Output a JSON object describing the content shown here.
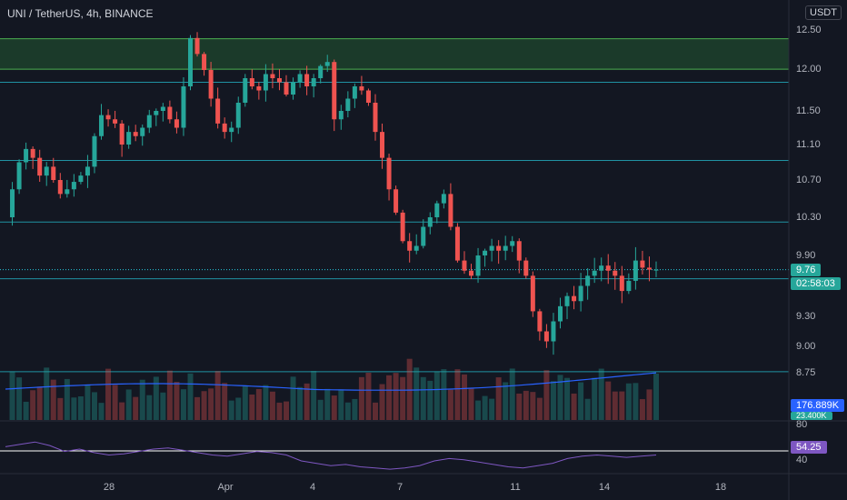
{
  "header": {
    "symbol_line": "UNI / TetherUS, 4h, BINANCE",
    "currency": "USDT"
  },
  "colors": {
    "up": "#26a69a",
    "down": "#ef5350",
    "level": "#26c6da",
    "zone": "#1b3a2a",
    "zone_line": "#4caf50",
    "vol_ma": "#2962ff",
    "rsi": "#7e57c2",
    "price_tag": "#26a69a",
    "vol_tag": "#2962ff",
    "rsi_tag": "#7e57c2"
  },
  "tags": {
    "price": "9.76",
    "countdown": "02:58:03",
    "volume_ma": "176.889K",
    "volume": "23.400K",
    "rsi": "54.25"
  },
  "chart_data": {
    "type": "candlestick",
    "title": "UNI / TetherUS, 4h, BINANCE",
    "y_ticks": [
      "12.50",
      "12.00",
      "11.50",
      "11.10",
      "10.70",
      "10.30",
      "9.90",
      "9.30",
      "9.00",
      "8.75"
    ],
    "x_ticks": [
      "28",
      "Apr",
      "4",
      "7",
      "11",
      "14",
      "18"
    ],
    "y_range": [
      8.75,
      12.5
    ],
    "horizontal_levels": [
      11.85,
      10.92,
      10.25,
      9.67,
      8.76
    ],
    "resistance_zone": [
      12.01,
      12.39
    ],
    "last_price": 9.76,
    "close_series": [
      10.3,
      10.6,
      10.9,
      11.05,
      10.95,
      10.75,
      10.85,
      10.7,
      10.55,
      10.6,
      10.68,
      10.75,
      10.85,
      11.2,
      11.45,
      11.4,
      11.35,
      11.1,
      11.25,
      11.2,
      11.3,
      11.45,
      11.5,
      11.55,
      11.4,
      11.3,
      11.8,
      12.4,
      12.2,
      12.0,
      11.65,
      11.35,
      11.25,
      11.3,
      11.6,
      11.9,
      11.8,
      11.75,
      11.95,
      11.9,
      11.85,
      11.7,
      11.85,
      11.95,
      11.8,
      11.9,
      12.05,
      12.1,
      11.4,
      11.5,
      11.65,
      11.8,
      11.75,
      11.6,
      11.25,
      10.95,
      10.6,
      10.35,
      10.05,
      9.95,
      10.0,
      10.2,
      10.3,
      10.45,
      10.55,
      10.2,
      9.85,
      9.75,
      9.7,
      9.9,
      9.95,
      10.0,
      9.95,
      10.0,
      10.05,
      9.85,
      9.7,
      9.35,
      9.15,
      9.05,
      9.25,
      9.4,
      9.5,
      9.45,
      9.6,
      9.7,
      9.75,
      9.8,
      9.75,
      9.7,
      9.55,
      9.65,
      9.85,
      9.78,
      9.76,
      9.76
    ],
    "rsi": {
      "value": 54.25,
      "levels": [
        80.0,
        40.0
      ],
      "series": [
        62,
        64,
        66,
        63,
        58,
        60,
        57,
        55,
        56,
        58,
        60,
        61,
        59,
        57,
        55,
        54,
        56,
        58,
        57,
        55,
        50,
        48,
        46,
        47,
        45,
        44,
        43,
        44,
        46,
        50,
        52,
        51,
        49,
        47,
        45,
        44,
        46,
        48,
        52,
        54,
        55,
        54,
        53,
        54,
        55
      ]
    },
    "volume": {
      "ma_value": "176.889K",
      "last_value": "23.400K"
    }
  }
}
